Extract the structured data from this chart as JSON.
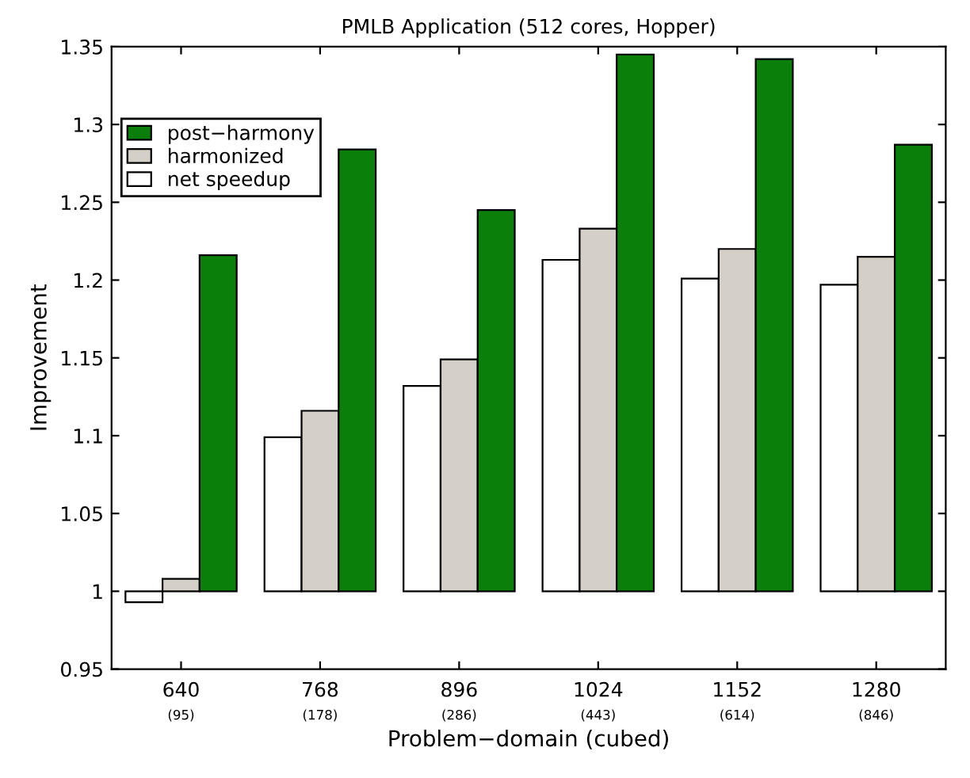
{
  "chart_data": {
    "type": "bar",
    "title": "PMLB Application (512 cores, Hopper)",
    "xlabel": "Problem−domain (cubed)",
    "ylabel": "Improvement",
    "categories": [
      "640\n(95)",
      "768\n(178)",
      "896\n(286)",
      "1024\n(443)",
      "1152\n(614)",
      "1280\n(846)"
    ],
    "series": [
      {
        "name": "net speedup",
        "color": "#ffffff",
        "base": [
          1,
          1,
          1,
          1,
          1,
          1
        ],
        "values": [
          -0.007,
          0.099,
          0.132,
          0.213,
          0.201,
          0.197
        ]
      },
      {
        "name": "harmonized",
        "color": "#d4d0c8",
        "base": [
          1,
          1,
          1,
          1,
          1,
          1
        ],
        "values": [
          0.008,
          0.116,
          0.149,
          0.233,
          0.22,
          0.215
        ]
      },
      {
        "name": "post−harmony",
        "color": "#0a7f0a",
        "base": [
          1,
          1,
          1,
          1,
          1,
          1
        ],
        "values": [
          0.216,
          0.284,
          0.245,
          0.345,
          0.342,
          0.287
        ]
      }
    ],
    "ylim": [
      0.95,
      1.35
    ],
    "yticks": [
      0.95,
      1,
      1.05,
      1.1,
      1.15,
      1.2,
      1.25,
      1.3,
      1.35
    ],
    "legend": "top left"
  }
}
